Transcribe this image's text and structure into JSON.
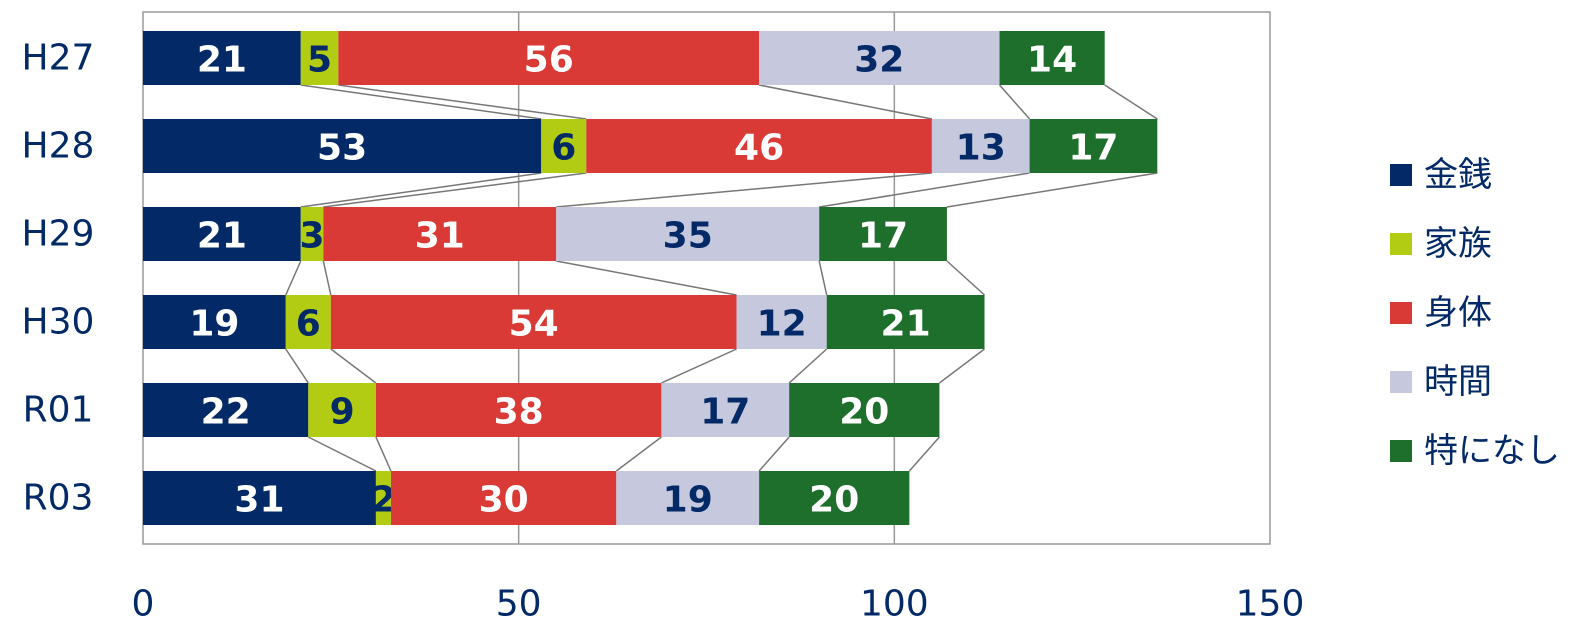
{
  "chart_data": {
    "type": "stacked_bar_horizontal",
    "categories": [
      "H27",
      "H28",
      "H29",
      "H30",
      "R01",
      "R03"
    ],
    "series": [
      {
        "name": "金銭",
        "color": "#032a66",
        "label_color": "#ffffff",
        "values": [
          21,
          53,
          21,
          19,
          22,
          31
        ]
      },
      {
        "name": "家族",
        "color": "#b2cc14",
        "label_color": "#032a66",
        "values": [
          5,
          6,
          3,
          6,
          9,
          2
        ]
      },
      {
        "name": "身体",
        "color": "#d93a35",
        "label_color": "#ffffff",
        "values": [
          56,
          46,
          31,
          54,
          38,
          30
        ]
      },
      {
        "name": "時間",
        "color": "#c6c9dd",
        "label_color": "#032a66",
        "values": [
          32,
          13,
          35,
          12,
          17,
          19
        ]
      },
      {
        "name": "特になし",
        "color": "#1f6f2c",
        "label_color": "#ffffff",
        "values": [
          14,
          17,
          17,
          21,
          20,
          20
        ]
      }
    ],
    "xlim": [
      0,
      150
    ],
    "xticks": [
      0,
      50,
      100,
      150
    ],
    "grid": true,
    "series_lines": true,
    "legend": "right"
  }
}
